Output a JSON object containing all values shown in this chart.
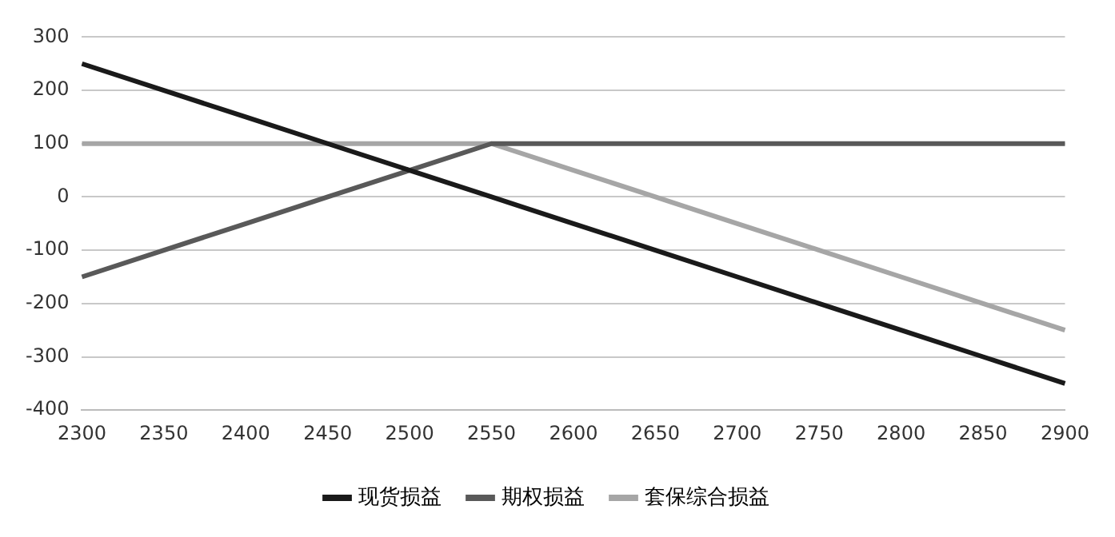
{
  "chart_data": {
    "type": "line",
    "categories": [
      "2300",
      "2350",
      "2400",
      "2450",
      "2500",
      "2550",
      "2600",
      "2650",
      "2700",
      "2750",
      "2800",
      "2850",
      "2900"
    ],
    "series": [
      {
        "name": "现货损益",
        "color": "#1a1a1a",
        "values": [
          250,
          200,
          150,
          100,
          50,
          0,
          -50,
          -100,
          -150,
          -200,
          -250,
          -300,
          -350
        ]
      },
      {
        "name": "期权损益",
        "color": "#595959",
        "values": [
          -150,
          -100,
          -50,
          0,
          50,
          100,
          100,
          100,
          100,
          100,
          100,
          100,
          100
        ]
      },
      {
        "name": "套保综合损益",
        "color": "#a6a6a6",
        "values": [
          100,
          100,
          100,
          100,
          100,
          100,
          50,
          0,
          -50,
          -100,
          -150,
          -200,
          -250
        ]
      }
    ],
    "ylim": [
      -400,
      300
    ],
    "yticks": [
      -400,
      -300,
      -200,
      -100,
      0,
      100,
      200,
      300
    ],
    "grid": "y",
    "legend": "bottom",
    "marker": "none",
    "line_style": "solid"
  }
}
